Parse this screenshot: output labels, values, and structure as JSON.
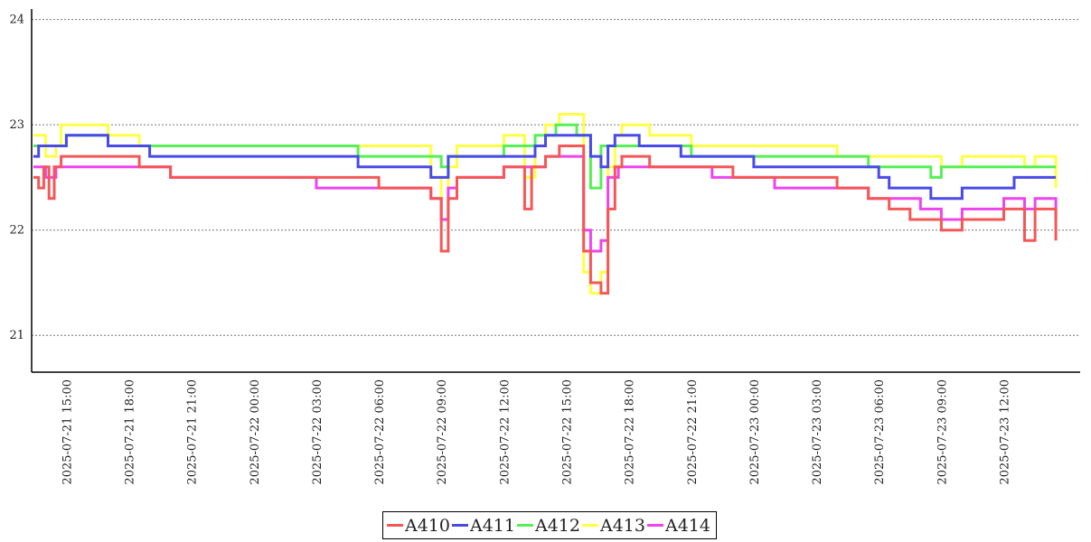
{
  "chart_data": {
    "type": "line",
    "title": "",
    "xlabel": "",
    "ylabel": "",
    "ylim": [
      20.65,
      24.1
    ],
    "xlim": [
      "2025-07-21 13:20",
      "2025-07-23 15:40"
    ],
    "grid": "horizontal dotted",
    "legend_position": "bottom-center",
    "y_ticks": [
      21,
      22,
      23,
      24
    ],
    "y_tick_labels": [
      "21",
      "22",
      "23",
      "24"
    ],
    "x_tick_labels": [
      "2025-07-21 15:00",
      "2025-07-21 18:00",
      "2025-07-21 21:00",
      "2025-07-22 00:00",
      "2025-07-22 03:00",
      "2025-07-22 06:00",
      "2025-07-22 09:00",
      "2025-07-22 12:00",
      "2025-07-22 15:00",
      "2025-07-22 18:00",
      "2025-07-22 21:00",
      "2025-07-23 00:00",
      "2025-07-23 03:00",
      "2025-07-23 06:00",
      "2025-07-23 09:00",
      "2025-07-23 12:00"
    ],
    "series": [
      {
        "name": "A410",
        "color": "#f55757",
        "points": [
          [
            "2025-07-21 13:25",
            22.5
          ],
          [
            "2025-07-21 13:40",
            22.4
          ],
          [
            "2025-07-21 13:55",
            22.6
          ],
          [
            "2025-07-21 14:10",
            22.3
          ],
          [
            "2025-07-21 14:25",
            22.6
          ],
          [
            "2025-07-21 14:45",
            22.7
          ],
          [
            "2025-07-21 18:30",
            22.6
          ],
          [
            "2025-07-21 20:00",
            22.5
          ],
          [
            "2025-07-22 06:00",
            22.4
          ],
          [
            "2025-07-22 08:30",
            22.3
          ],
          [
            "2025-07-22 09:00",
            21.8
          ],
          [
            "2025-07-22 09:20",
            22.3
          ],
          [
            "2025-07-22 09:45",
            22.5
          ],
          [
            "2025-07-22 12:00",
            22.6
          ],
          [
            "2025-07-22 13:00",
            22.2
          ],
          [
            "2025-07-22 13:20",
            22.6
          ],
          [
            "2025-07-22 14:00",
            22.7
          ],
          [
            "2025-07-22 14:40",
            22.8
          ],
          [
            "2025-07-22 15:30",
            22.8
          ],
          [
            "2025-07-22 15:50",
            21.8
          ],
          [
            "2025-07-22 16:10",
            21.5
          ],
          [
            "2025-07-22 16:40",
            21.4
          ],
          [
            "2025-07-22 17:00",
            22.2
          ],
          [
            "2025-07-22 17:20",
            22.6
          ],
          [
            "2025-07-22 17:40",
            22.7
          ],
          [
            "2025-07-22 19:00",
            22.6
          ],
          [
            "2025-07-22 23:00",
            22.5
          ],
          [
            "2025-07-23 04:00",
            22.4
          ],
          [
            "2025-07-23 05:30",
            22.3
          ],
          [
            "2025-07-23 06:30",
            22.2
          ],
          [
            "2025-07-23 07:30",
            22.1
          ],
          [
            "2025-07-23 09:00",
            22.0
          ],
          [
            "2025-07-23 10:00",
            22.1
          ],
          [
            "2025-07-23 12:00",
            22.2
          ],
          [
            "2025-07-23 13:00",
            21.9
          ],
          [
            "2025-07-23 13:30",
            22.2
          ],
          [
            "2025-07-23 14:30",
            21.9
          ]
        ]
      },
      {
        "name": "A411",
        "color": "#4a4ae8",
        "points": [
          [
            "2025-07-21 13:25",
            22.7
          ],
          [
            "2025-07-21 13:40",
            22.8
          ],
          [
            "2025-07-21 14:40",
            22.8
          ],
          [
            "2025-07-21 15:00",
            22.9
          ],
          [
            "2025-07-21 17:00",
            22.8
          ],
          [
            "2025-07-21 19:00",
            22.7
          ],
          [
            "2025-07-22 05:00",
            22.6
          ],
          [
            "2025-07-22 08:30",
            22.5
          ],
          [
            "2025-07-22 09:20",
            22.7
          ],
          [
            "2025-07-22 12:30",
            22.7
          ],
          [
            "2025-07-22 13:30",
            22.8
          ],
          [
            "2025-07-22 14:00",
            22.9
          ],
          [
            "2025-07-22 15:30",
            22.9
          ],
          [
            "2025-07-22 16:10",
            22.7
          ],
          [
            "2025-07-22 16:40",
            22.6
          ],
          [
            "2025-07-22 17:00",
            22.8
          ],
          [
            "2025-07-22 17:20",
            22.9
          ],
          [
            "2025-07-22 18:30",
            22.8
          ],
          [
            "2025-07-22 20:30",
            22.7
          ],
          [
            "2025-07-23 00:00",
            22.6
          ],
          [
            "2025-07-23 06:00",
            22.5
          ],
          [
            "2025-07-23 06:30",
            22.4
          ],
          [
            "2025-07-23 08:30",
            22.3
          ],
          [
            "2025-07-23 10:00",
            22.4
          ],
          [
            "2025-07-23 12:00",
            22.4
          ],
          [
            "2025-07-23 12:30",
            22.5
          ],
          [
            "2025-07-23 14:30",
            22.5
          ]
        ]
      },
      {
        "name": "A412",
        "color": "#55f055",
        "points": [
          [
            "2025-07-21 13:25",
            22.8
          ],
          [
            "2025-07-21 14:40",
            22.8
          ],
          [
            "2025-07-21 15:00",
            22.9
          ],
          [
            "2025-07-21 17:00",
            22.8
          ],
          [
            "2025-07-22 05:00",
            22.7
          ],
          [
            "2025-07-22 09:00",
            22.6
          ],
          [
            "2025-07-22 09:20",
            22.7
          ],
          [
            "2025-07-22 12:00",
            22.8
          ],
          [
            "2025-07-22 13:30",
            22.9
          ],
          [
            "2025-07-22 14:30",
            23.0
          ],
          [
            "2025-07-22 15:30",
            22.9
          ],
          [
            "2025-07-22 16:10",
            22.4
          ],
          [
            "2025-07-22 16:40",
            22.8
          ],
          [
            "2025-07-22 17:30",
            22.8
          ],
          [
            "2025-07-22 21:00",
            22.7
          ],
          [
            "2025-07-23 03:00",
            22.7
          ],
          [
            "2025-07-23 05:30",
            22.6
          ],
          [
            "2025-07-23 08:30",
            22.5
          ],
          [
            "2025-07-23 09:00",
            22.6
          ],
          [
            "2025-07-23 14:30",
            22.6
          ]
        ]
      },
      {
        "name": "A413",
        "color": "#ffff44",
        "points": [
          [
            "2025-07-21 13:25",
            22.9
          ],
          [
            "2025-07-21 14:00",
            22.7
          ],
          [
            "2025-07-21 14:30",
            22.8
          ],
          [
            "2025-07-21 14:45",
            23.0
          ],
          [
            "2025-07-21 17:00",
            22.9
          ],
          [
            "2025-07-21 18:30",
            22.8
          ],
          [
            "2025-07-22 07:00",
            22.8
          ],
          [
            "2025-07-22 08:30",
            22.5
          ],
          [
            "2025-07-22 09:00",
            22.1
          ],
          [
            "2025-07-22 09:20",
            22.6
          ],
          [
            "2025-07-22 09:45",
            22.8
          ],
          [
            "2025-07-22 12:00",
            22.9
          ],
          [
            "2025-07-22 13:00",
            22.5
          ],
          [
            "2025-07-22 13:30",
            22.8
          ],
          [
            "2025-07-22 14:00",
            23.0
          ],
          [
            "2025-07-22 14:40",
            23.1
          ],
          [
            "2025-07-22 15:30",
            23.1
          ],
          [
            "2025-07-22 15:50",
            21.6
          ],
          [
            "2025-07-22 16:10",
            21.4
          ],
          [
            "2025-07-22 16:40",
            21.6
          ],
          [
            "2025-07-22 17:00",
            22.6
          ],
          [
            "2025-07-22 17:20",
            22.9
          ],
          [
            "2025-07-22 17:40",
            23.0
          ],
          [
            "2025-07-22 19:00",
            22.9
          ],
          [
            "2025-07-22 21:00",
            22.8
          ],
          [
            "2025-07-23 02:00",
            22.8
          ],
          [
            "2025-07-23 04:00",
            22.7
          ],
          [
            "2025-07-23 08:00",
            22.7
          ],
          [
            "2025-07-23 09:00",
            22.6
          ],
          [
            "2025-07-23 10:00",
            22.7
          ],
          [
            "2025-07-23 13:00",
            22.6
          ],
          [
            "2025-07-23 13:30",
            22.7
          ],
          [
            "2025-07-23 14:30",
            22.4
          ]
        ]
      },
      {
        "name": "A414",
        "color": "#ee44ee",
        "points": [
          [
            "2025-07-21 13:25",
            22.6
          ],
          [
            "2025-07-21 14:00",
            22.5
          ],
          [
            "2025-07-21 14:30",
            22.6
          ],
          [
            "2025-07-21 17:00",
            22.6
          ],
          [
            "2025-07-21 20:00",
            22.5
          ],
          [
            "2025-07-22 03:00",
            22.4
          ],
          [
            "2025-07-22 08:30",
            22.3
          ],
          [
            "2025-07-22 09:00",
            22.1
          ],
          [
            "2025-07-22 09:20",
            22.4
          ],
          [
            "2025-07-22 09:45",
            22.5
          ],
          [
            "2025-07-22 12:00",
            22.6
          ],
          [
            "2025-07-22 14:00",
            22.7
          ],
          [
            "2025-07-22 15:30",
            22.7
          ],
          [
            "2025-07-22 15:50",
            22.0
          ],
          [
            "2025-07-22 16:10",
            21.8
          ],
          [
            "2025-07-22 16:40",
            21.9
          ],
          [
            "2025-07-22 17:00",
            22.5
          ],
          [
            "2025-07-22 17:30",
            22.6
          ],
          [
            "2025-07-22 22:00",
            22.5
          ],
          [
            "2025-07-23 01:00",
            22.4
          ],
          [
            "2025-07-23 05:30",
            22.3
          ],
          [
            "2025-07-23 08:00",
            22.2
          ],
          [
            "2025-07-23 09:00",
            22.1
          ],
          [
            "2025-07-23 10:00",
            22.2
          ],
          [
            "2025-07-23 12:00",
            22.3
          ],
          [
            "2025-07-23 13:00",
            22.2
          ],
          [
            "2025-07-23 13:30",
            22.3
          ],
          [
            "2025-07-23 14:30",
            22.1
          ]
        ]
      }
    ]
  }
}
